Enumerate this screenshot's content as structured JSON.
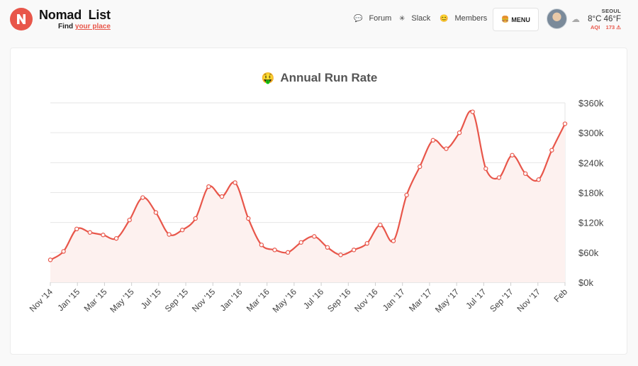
{
  "header": {
    "brand_name": "Nomad  List",
    "tagline_prefix": "Find ",
    "tagline_highlight": "your place",
    "nav": [
      {
        "label": "Forum",
        "icon": "speech-bubble-icon"
      },
      {
        "label": "Slack",
        "icon": "slack-icon"
      },
      {
        "label": "Members",
        "icon": "smiley-icon"
      }
    ],
    "menu_label": "MENU",
    "weather": {
      "city": "SEOUL",
      "temp": "8°C 46°F",
      "aqi_label": "AQI",
      "aqi_value": "173"
    }
  },
  "colors": {
    "accent": "#e8564a",
    "area_fill": "#fdf1ef",
    "grid": "#e6e6e6"
  },
  "chart_data": {
    "type": "area",
    "title": "Annual Run Rate",
    "title_emoji": "🤑",
    "x_tick_labels": [
      "Nov '14",
      "Jan '15",
      "Mar '15",
      "May '15",
      "Jul '15",
      "Sep '15",
      "Nov '15",
      "Jan '16",
      "Mar '16",
      "May '16",
      "Jul '16",
      "Sep '16",
      "Nov '16",
      "Jan '17",
      "Mar '17",
      "May '17",
      "Jul '17",
      "Sep '17",
      "Nov '17",
      "Feb"
    ],
    "y_tick_labels": [
      "$0k",
      "$60k",
      "$120k",
      "$180k",
      "$240k",
      "$300k",
      "$360k"
    ],
    "ylim": [
      0,
      360
    ],
    "yunit": "thousand USD",
    "y_axis_position": "right",
    "grid": true,
    "series": [
      {
        "values": [
          45,
          62,
          107,
          100,
          95,
          88,
          125,
          170,
          140,
          96,
          105,
          128,
          192,
          172,
          200,
          128,
          75,
          65,
          60,
          80,
          92,
          70,
          55,
          65,
          78,
          115,
          83,
          175,
          232,
          285,
          268,
          300,
          342,
          228,
          210,
          255,
          218,
          206,
          265,
          318
        ]
      }
    ]
  }
}
